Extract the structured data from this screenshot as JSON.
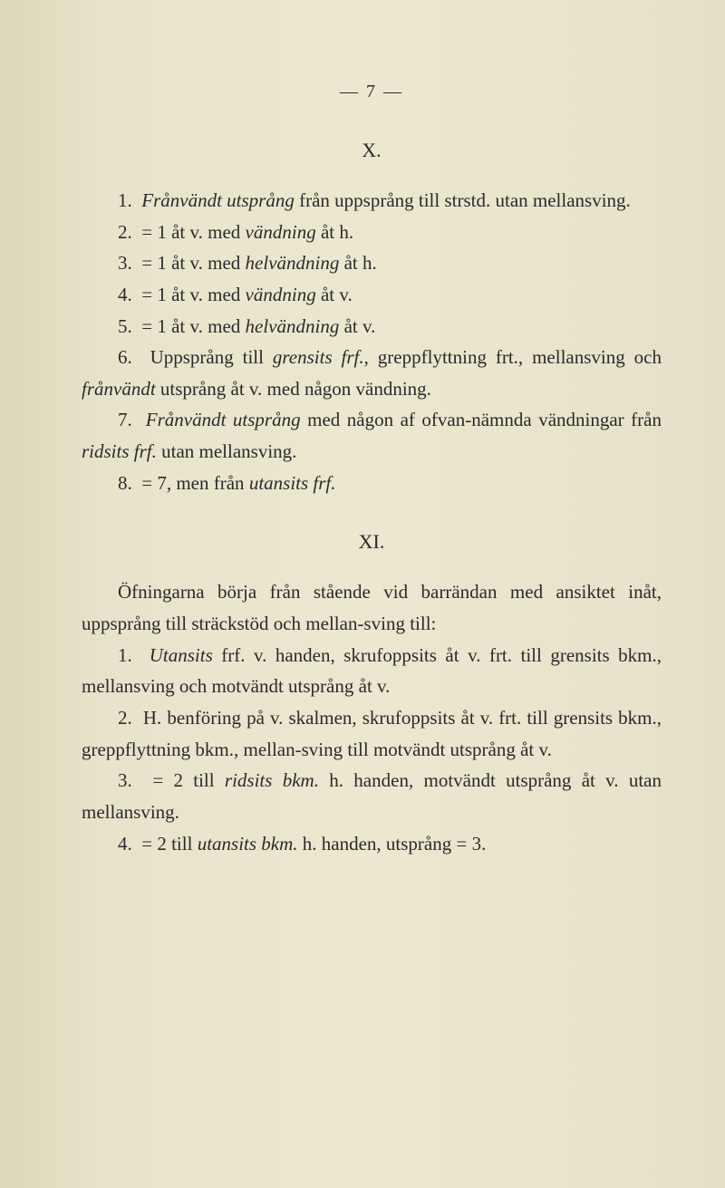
{
  "page_number_header": "— 7 —",
  "sectionX": {
    "heading": "X.",
    "p1": "1. Frånvändt utsprång från uppsprång till strstd. utan mellansving.",
    "p2": "2. = 1 åt v. med vändning åt h.",
    "p3": "3. = 1 åt v. med helvändning åt h.",
    "p4": "4. = 1 åt v. med vändning åt v.",
    "p5": "5. = 1 åt v. med helvändning åt v.",
    "p6": "6. Uppsprång till grensits frf., greppflyttning frt., mellansving och frånvändt utsprång åt v. med någon vändning.",
    "p7": "7. Frånvändt utsprång med någon af ofvan-nämnda vändningar från ridsits frf. utan mellansving.",
    "p8": "8. = 7, men från utansits frf."
  },
  "sectionXI": {
    "heading": "XI.",
    "p0": "Öfningarna börja från stående vid barrändan med ansiktet inåt, uppsprång till sträckstöd och mellan-sving till:",
    "p1": "1. Utansits frf. v. handen, skrufoppsits åt v. frt. till grensits bkm., mellansving och motvändt utsprång åt v.",
    "p2": "2. H. benföring på v. skalmen, skrufoppsits åt v. frt. till grensits bkm., greppflyttning bkm., mellan-sving till motvändt utsprång åt v.",
    "p3": "3. = 2 till ridsits bkm. h. handen, motvändt utsprång åt v. utan mellansving.",
    "p4": "4. = 2 till utansits bkm. h. handen, utsprång = 3."
  }
}
